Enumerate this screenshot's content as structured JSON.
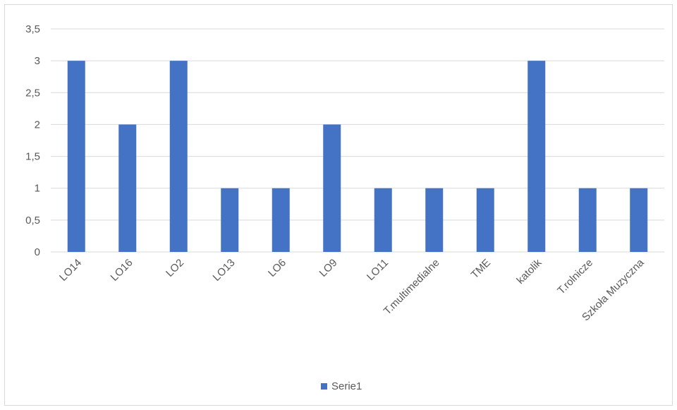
{
  "chart_data": {
    "type": "bar",
    "categories": [
      "LO14",
      "LO16",
      "LO2",
      "LO13",
      "LO6",
      "LO9",
      "LO11",
      "T.multimedialne",
      "TME",
      "katolik",
      "T.rolnicze",
      "Szkoła Muzyczna"
    ],
    "series": [
      {
        "name": "Serie1",
        "values": [
          3,
          2,
          3,
          1,
          1,
          2,
          1,
          1,
          1,
          3,
          1,
          1
        ],
        "color": "#4472c4"
      }
    ],
    "title": "",
    "xlabel": "",
    "ylabel": "",
    "ylim": [
      0,
      3.5
    ],
    "yticks": [
      "0",
      "0,5",
      "1",
      "1,5",
      "2",
      "2,5",
      "3",
      "3,5"
    ],
    "ytick_values": [
      0,
      0.5,
      1,
      1.5,
      2,
      2.5,
      3,
      3.5
    ],
    "grid": true,
    "legend_position": "bottom",
    "gridline_color": "#d9d9d9",
    "label_color": "#595959"
  }
}
